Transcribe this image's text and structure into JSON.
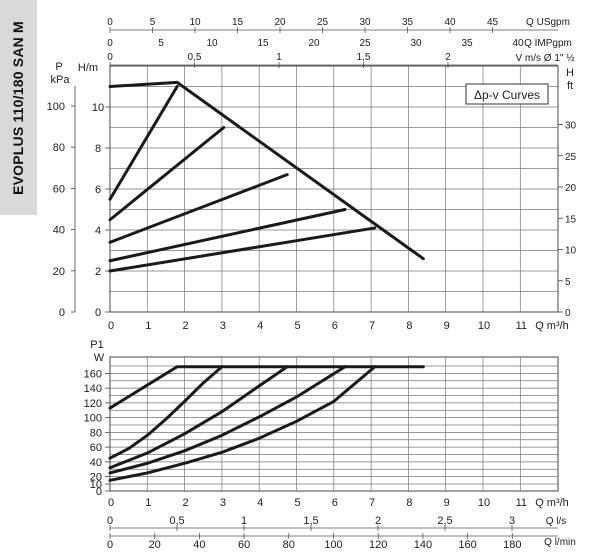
{
  "sidebar_title": "EVOPLUS 110/180 SAN M",
  "chart_data": [
    {
      "type": "line",
      "title": "",
      "legend_box": "Δp-v Curves",
      "x_axis": {
        "label": "Q m³/h",
        "ticks": [
          0,
          1,
          2,
          3,
          4,
          5,
          6,
          7,
          8,
          9,
          10,
          11
        ],
        "range": [
          0,
          12
        ]
      },
      "y_axis_left": {
        "label": "H",
        "unit": "m",
        "ticks": [
          0,
          2,
          4,
          6,
          8,
          10
        ],
        "range": [
          0,
          12
        ]
      },
      "y_axis_kpa": {
        "label": "P",
        "unit": "kPa",
        "ticks": [
          0,
          20,
          40,
          60,
          80,
          100
        ]
      },
      "y_axis_right": {
        "label": "H",
        "unit": "ft",
        "ticks": [
          0,
          5,
          10,
          15,
          20,
          25,
          30
        ]
      },
      "top_axes": [
        {
          "label": "Q USgpm",
          "ticks": [
            "0",
            "5",
            "10",
            "15",
            "20",
            "25",
            "30",
            "35",
            "40",
            "45"
          ]
        },
        {
          "label": "Q IMPgpm",
          "ticks": [
            "0",
            "5",
            "10",
            "15",
            "20",
            "25",
            "30",
            "35",
            "40"
          ]
        },
        {
          "label": "V m/s Ø 1\" ½",
          "ticks": [
            "0",
            "0,5",
            "1",
            "1,5",
            "2"
          ]
        }
      ],
      "series": [
        {
          "x": [
            0,
            1.8,
            8.4
          ],
          "y": [
            11,
            11.2,
            2.6
          ]
        },
        {
          "x": [
            0,
            1.8
          ],
          "y": [
            5.5,
            11
          ]
        },
        {
          "x": [
            0,
            3.05
          ],
          "y": [
            4.5,
            9.0
          ]
        },
        {
          "x": [
            0,
            4.75
          ],
          "y": [
            3.4,
            6.7
          ]
        },
        {
          "x": [
            0,
            6.3
          ],
          "y": [
            2.5,
            5.0
          ]
        },
        {
          "x": [
            0,
            7.1
          ],
          "y": [
            2.0,
            4.1
          ]
        }
      ]
    },
    {
      "type": "line",
      "title": "",
      "x_axis": {
        "label": "Q m³/h",
        "ticks": [
          0,
          1,
          2,
          3,
          4,
          5,
          6,
          7,
          8,
          9,
          10,
          11
        ],
        "range": [
          0,
          12
        ]
      },
      "y_axis": {
        "label": "P1",
        "unit": "W",
        "ticks": [
          0,
          10,
          20,
          40,
          60,
          80,
          100,
          120,
          140,
          160
        ]
      },
      "bottom_axes": [
        {
          "label": "Q l/s",
          "ticks": [
            "0",
            "0,5",
            "1",
            "1,5",
            "2",
            "2,5",
            "3"
          ]
        },
        {
          "label": "Q l/min",
          "ticks": [
            "0",
            "20",
            "40",
            "60",
            "80",
            "100",
            "120",
            "140",
            "160",
            "180"
          ]
        }
      ],
      "series": [
        {
          "x": [
            0,
            1.8,
            8.4
          ],
          "y": [
            113,
            169,
            169
          ]
        },
        {
          "x": [
            0,
            0.5,
            1.0,
            1.5,
            2.0,
            2.5,
            3.0
          ],
          "y": [
            45,
            58,
            76,
            98,
            122,
            147,
            169
          ]
        },
        {
          "x": [
            0,
            1,
            2,
            3,
            4,
            4.75
          ],
          "y": [
            32,
            52,
            78,
            108,
            143,
            169
          ]
        },
        {
          "x": [
            0,
            1,
            2,
            3,
            4,
            5,
            6.3
          ],
          "y": [
            25,
            38,
            55,
            76,
            101,
            128,
            169
          ]
        },
        {
          "x": [
            0,
            1,
            2,
            3,
            4,
            5,
            6,
            7.1
          ],
          "y": [
            15,
            25,
            38,
            53,
            72,
            95,
            122,
            169
          ]
        }
      ]
    }
  ]
}
